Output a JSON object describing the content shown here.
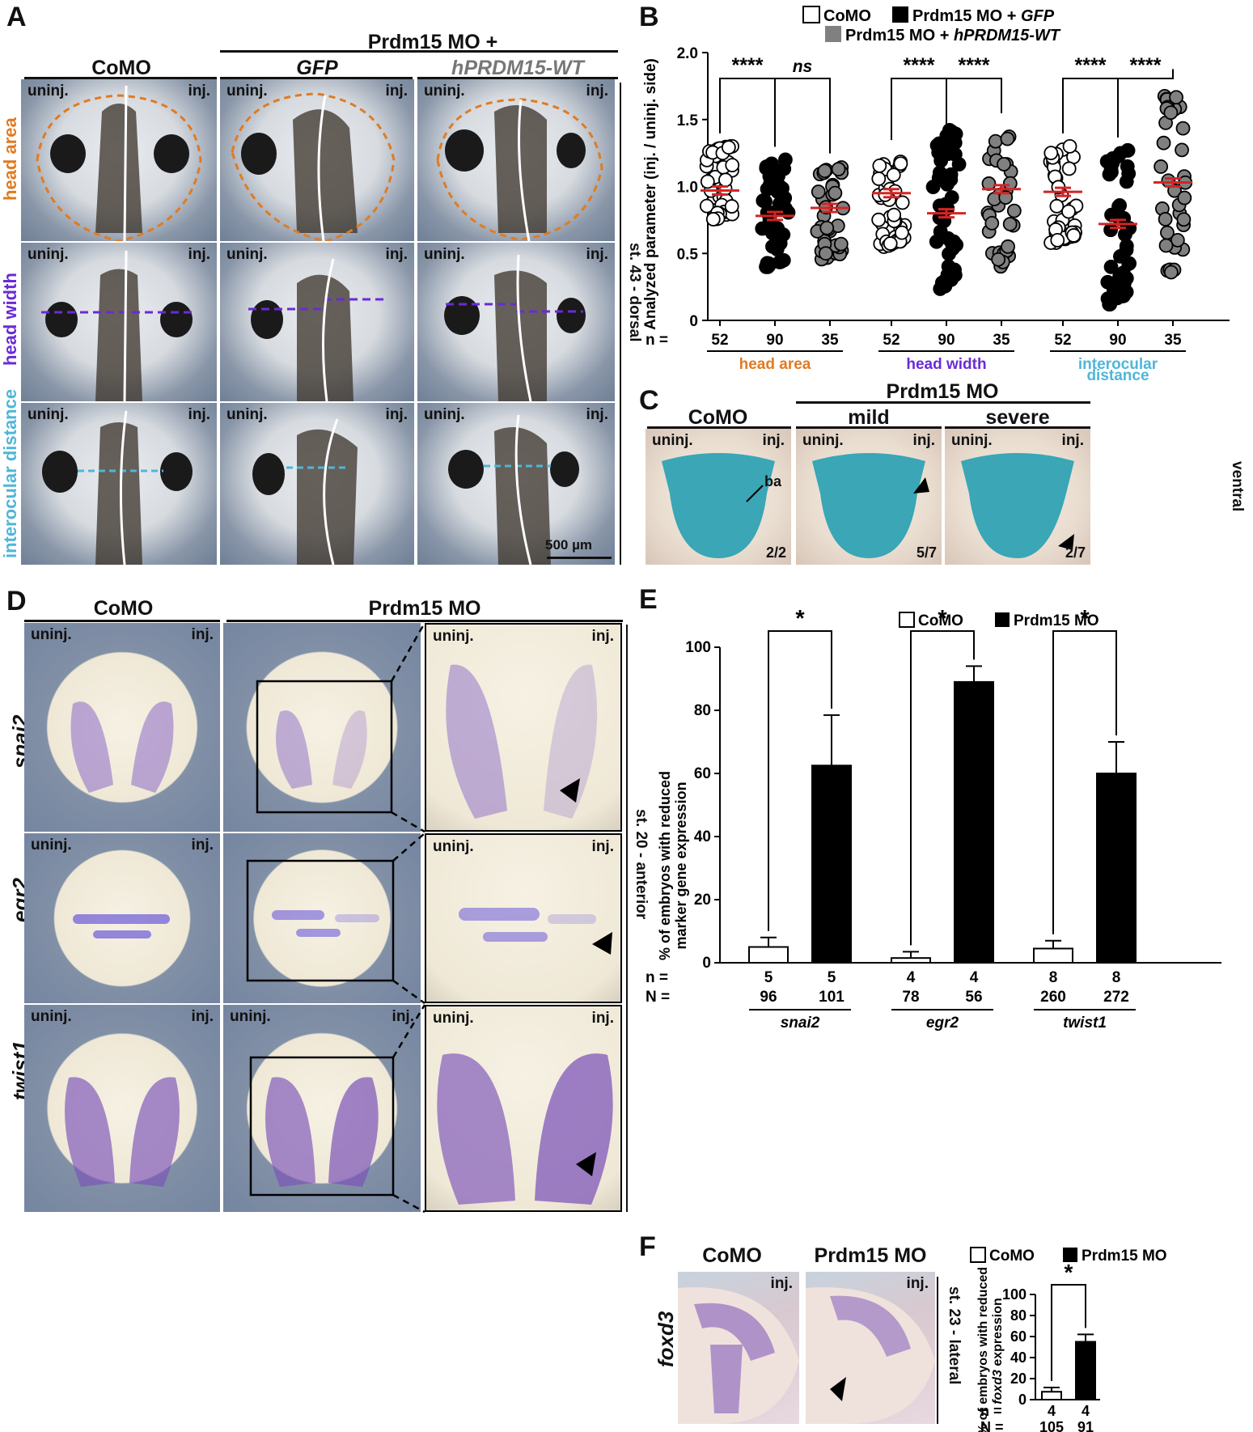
{
  "panels": {
    "A": "A",
    "B": "B",
    "C": "C",
    "D": "D",
    "E": "E",
    "F": "F"
  },
  "common": {
    "uninj": "uninj.",
    "inj": "inj."
  },
  "panelA": {
    "header_top": "Prdm15 MO +",
    "col_comO": "CoMO",
    "col_gfp": "GFP",
    "col_hprdm": "hPRDM15-WT",
    "row1": "head area",
    "row2": "head width",
    "row3_a": "interocular",
    "row3_b": "distance",
    "side": "st. 43 - dorsal",
    "scale": "500 µm"
  },
  "panelC": {
    "col_comO": "CoMO",
    "header_top": "Prdm15 MO",
    "col_mild": "mild",
    "col_severe": "severe",
    "ba": "ba",
    "count1": "2/2",
    "count2": "5/7",
    "count3": "2/7",
    "side": "ventral"
  },
  "panelD": {
    "col_comO": "CoMO",
    "col_prdm": "Prdm15 MO",
    "row1": "snai2",
    "row2": "egr2",
    "row3": "twist1",
    "side": "st. 20 - anterior"
  },
  "panelF": {
    "col_comO": "CoMO",
    "col_prdm": "Prdm15 MO",
    "row": "foxd3",
    "side": "st. 23 - lateral"
  },
  "colors": {
    "orange": "#e07b22",
    "purple": "#6a2bd6",
    "cyan": "#4fb6d8",
    "red": "#d42424",
    "gray": "#808080"
  },
  "chart_data": [
    {
      "type": "scatter",
      "panel": "B",
      "legend": [
        "CoMO",
        "Prdm15 MO + GFP",
        "Prdm15 MO + hPRDM15-WT"
      ],
      "ylabel": "Analyzed parameter  (inj. / uninj. side)",
      "ylim": [
        0,
        2.0
      ],
      "yticks": [
        "0",
        "0.5",
        "1.0",
        "1.5",
        "2.0"
      ],
      "n_label": "n =",
      "groups": [
        {
          "name": "head area",
          "n": [
            52,
            90,
            35
          ],
          "means": [
            0.97,
            0.78,
            0.84
          ]
        },
        {
          "name": "head width",
          "n": [
            52,
            90,
            35
          ],
          "means": [
            0.95,
            0.8,
            0.98
          ]
        },
        {
          "name": "interocular distance",
          "name_a": "interocular",
          "name_b": "distance",
          "n": [
            52,
            90,
            35
          ],
          "means": [
            0.96,
            0.72,
            1.03
          ]
        }
      ],
      "significance": [
        "****",
        "ns",
        "****",
        "****",
        "****",
        "****"
      ]
    },
    {
      "type": "bar",
      "panel": "E",
      "legend": [
        "CoMO",
        "Prdm15 MO"
      ],
      "ylabel_a": "% of embryos with reduced",
      "ylabel_b": "marker gene expression",
      "ylim": [
        0,
        100
      ],
      "yticks": [
        "0",
        "20",
        "40",
        "60",
        "80",
        "100"
      ],
      "categories": [
        "snai2",
        "egr2",
        "twist1"
      ],
      "series": [
        {
          "name": "CoMO",
          "values": [
            5,
            1.5,
            4.5
          ],
          "err": [
            3,
            2,
            2.5
          ],
          "n": [
            5,
            4,
            8
          ],
          "N": [
            96,
            78,
            260
          ]
        },
        {
          "name": "Prdm15 MO",
          "values": [
            62.5,
            89,
            60
          ],
          "err": [
            16,
            5,
            10
          ],
          "n": [
            5,
            4,
            8
          ],
          "N": [
            101,
            56,
            272
          ]
        }
      ],
      "n_label": "n =",
      "N_label": "N =",
      "significance": [
        "*",
        "*",
        "*"
      ]
    },
    {
      "type": "bar",
      "panel": "F",
      "legend": [
        "CoMO",
        "Prdm15 MO"
      ],
      "ylabel_a": "% of embryos with reduced",
      "ylabel_b_italic": "foxd3",
      "ylabel_b_rest": " expression",
      "ylim": [
        0,
        100
      ],
      "yticks": [
        "0",
        "20",
        "40",
        "60",
        "80",
        "100"
      ],
      "series": [
        {
          "name": "CoMO",
          "values": [
            7.5
          ],
          "err": [
            4
          ],
          "n": [
            4
          ],
          "N": [
            105
          ]
        },
        {
          "name": "Prdm15 MO",
          "values": [
            55
          ],
          "err": [
            7
          ],
          "n": [
            4
          ],
          "N": [
            91
          ]
        }
      ],
      "n_label": "n =",
      "N_label": "N =",
      "significance": [
        "*"
      ]
    }
  ]
}
